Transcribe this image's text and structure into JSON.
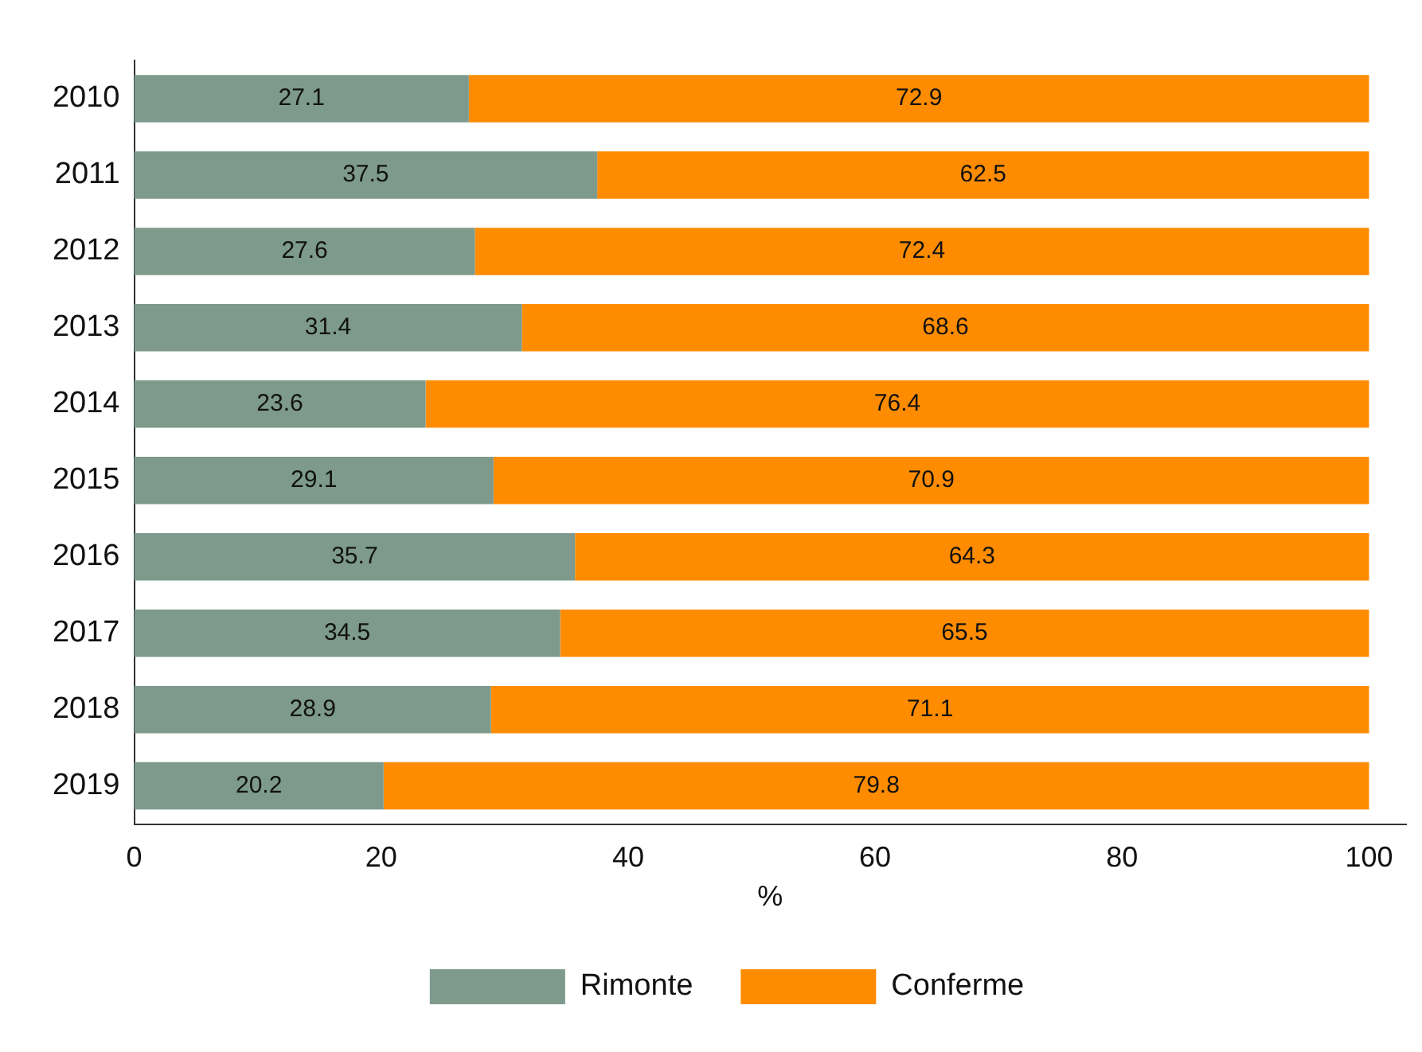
{
  "chart_data": {
    "type": "bar",
    "orientation": "horizontal",
    "stacked": true,
    "xlabel": "%",
    "categories": [
      "2010",
      "2011",
      "2012",
      "2013",
      "2014",
      "2015",
      "2016",
      "2017",
      "2018",
      "2019"
    ],
    "series": [
      {
        "name": "Rimonte",
        "color": "#7d9a8c",
        "values": [
          27.1,
          37.5,
          27.6,
          31.4,
          23.6,
          29.1,
          35.7,
          34.5,
          28.9,
          20.2
        ]
      },
      {
        "name": "Conferme",
        "color": "#ff8c00",
        "values": [
          72.9,
          62.5,
          72.4,
          68.6,
          76.4,
          70.9,
          64.3,
          65.5,
          71.1,
          79.8
        ]
      }
    ],
    "xlim": [
      0,
      103
    ],
    "xticks": [
      0,
      20,
      40,
      60,
      80,
      100
    ],
    "grid": false,
    "legend": "bottom",
    "data_labels": true
  }
}
